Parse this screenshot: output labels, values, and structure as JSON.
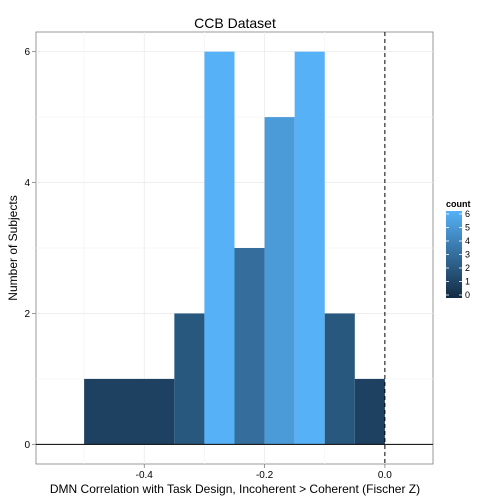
{
  "chart_data": {
    "type": "bar",
    "subtype": "histogram",
    "title": "CCB Dataset",
    "xlabel": "DMN Correlation with Task Design, Incoherent > Coherent (Fischer Z)",
    "ylabel": "Number of Subjects",
    "xlim": [
      -0.58,
      0.08
    ],
    "ylim": [
      -0.3,
      6.3
    ],
    "x_ticks": [
      -0.4,
      -0.2,
      0.0
    ],
    "x_tick_labels": [
      "-0.4",
      "-0.2",
      "0.0"
    ],
    "y_ticks": [
      0,
      2,
      4,
      6
    ],
    "y_tick_labels": [
      "0",
      "2",
      "4",
      "6"
    ],
    "grid": true,
    "bins": [
      {
        "x0": -0.5,
        "x1": -0.35,
        "count": 1
      },
      {
        "x0": -0.35,
        "x1": -0.3,
        "count": 2
      },
      {
        "x0": -0.3,
        "x1": -0.25,
        "count": 6
      },
      {
        "x0": -0.25,
        "x1": -0.2,
        "count": 3
      },
      {
        "x0": -0.2,
        "x1": -0.15,
        "count": 5
      },
      {
        "x0": -0.15,
        "x1": -0.1,
        "count": 6
      },
      {
        "x0": -0.1,
        "x1": -0.05,
        "count": 2
      },
      {
        "x0": -0.05,
        "x1": 0.0,
        "count": 1
      }
    ],
    "reference_line": {
      "x": 0.0,
      "style": "dashed"
    },
    "legend": {
      "title": "count",
      "position": "right",
      "min": 0,
      "max": 6,
      "labels": [
        "6",
        "5",
        "4",
        "3",
        "2",
        "1",
        "0"
      ],
      "color_low": "#132b43",
      "color_high": "#56b1f7"
    }
  }
}
